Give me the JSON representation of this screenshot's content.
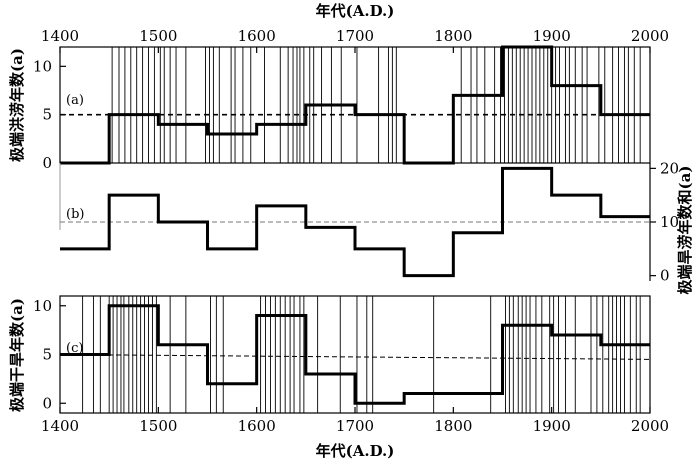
{
  "figure": {
    "top_axis_label": "年代(A.D.)",
    "bottom_axis_label": "年代(A.D.)"
  },
  "chart_data": [
    {
      "type": "line",
      "panel": "a",
      "panel_label": "(a)",
      "ylabel": "极端洪涝年数(a)",
      "xlim": [
        1400,
        2000
      ],
      "ylim": [
        0,
        12
      ],
      "x_ticks": [
        1400,
        1500,
        1600,
        1700,
        1800,
        1900,
        2000
      ],
      "y_ticks": [
        0,
        5,
        10
      ],
      "step_x": [
        1400,
        1450,
        1500,
        1550,
        1600,
        1650,
        1700,
        1750,
        1800,
        1850,
        1900,
        1950,
        2000
      ],
      "step_values": [
        0,
        5,
        4,
        3,
        4,
        6,
        5,
        0,
        7,
        12,
        8,
        5
      ],
      "mean_line": 5,
      "event_years": [
        1453,
        1460,
        1466,
        1472,
        1478,
        1484,
        1490,
        1496,
        1502,
        1506,
        1512,
        1518,
        1528,
        1548,
        1552,
        1556,
        1562,
        1574,
        1578,
        1586,
        1594,
        1608,
        1624,
        1632,
        1637,
        1641,
        1644,
        1648,
        1654,
        1658,
        1666,
        1676,
        1686,
        1702,
        1724,
        1734,
        1738,
        1742,
        1808,
        1818,
        1824,
        1832,
        1842,
        1848,
        1852,
        1856,
        1860,
        1864,
        1868,
        1872,
        1876,
        1880,
        1884,
        1888,
        1892,
        1896,
        1900,
        1904,
        1908,
        1914,
        1918,
        1924,
        1931,
        1936,
        1948,
        1954,
        1962,
        1968,
        1974,
        1978,
        1984,
        1990
      ]
    },
    {
      "type": "line",
      "panel": "b",
      "panel_label": "(b)",
      "ylabel": "极端旱涝年数和(a)",
      "xlim": [
        1400,
        2000
      ],
      "ylim": [
        -1,
        21
      ],
      "y_ticks": [
        0,
        10,
        20
      ],
      "step_x": [
        1400,
        1450,
        1500,
        1550,
        1600,
        1650,
        1700,
        1750,
        1800,
        1850,
        1900,
        1950,
        2000
      ],
      "step_values": [
        5,
        15,
        10,
        5,
        13,
        9,
        5,
        0,
        8,
        20,
        15,
        11
      ],
      "mean_line": 10
    },
    {
      "type": "line",
      "panel": "c",
      "panel_label": "(c)",
      "ylabel": "极端干旱年数(a)",
      "xlim": [
        1400,
        2000
      ],
      "ylim": [
        -1,
        11
      ],
      "x_ticks": [
        1400,
        1500,
        1600,
        1700,
        1800,
        1900,
        2000
      ],
      "y_ticks": [
        0,
        5,
        10
      ],
      "step_x": [
        1400,
        1450,
        1500,
        1550,
        1600,
        1650,
        1700,
        1750,
        1800,
        1850,
        1900,
        1950,
        2000
      ],
      "step_values": [
        5,
        10,
        6,
        2,
        9,
        3,
        0,
        1,
        1,
        8,
        7,
        6
      ],
      "mean_line_start": 5,
      "mean_line_end": 4.5,
      "event_years": [
        1423,
        1434,
        1441,
        1450,
        1454,
        1458,
        1462,
        1465,
        1470,
        1474,
        1478,
        1482,
        1486,
        1490,
        1494,
        1498,
        1512,
        1528,
        1553,
        1559,
        1566,
        1604,
        1609,
        1614,
        1619,
        1624,
        1629,
        1634,
        1638,
        1644,
        1648,
        1662,
        1685,
        1702,
        1712,
        1718,
        1780,
        1838,
        1853,
        1857,
        1861,
        1866,
        1870,
        1874,
        1878,
        1884,
        1890,
        1898,
        1902,
        1907,
        1914,
        1924,
        1940,
        1946,
        1952,
        1958,
        1962,
        1966,
        1970,
        1974,
        1980,
        1986,
        1990
      ]
    }
  ]
}
